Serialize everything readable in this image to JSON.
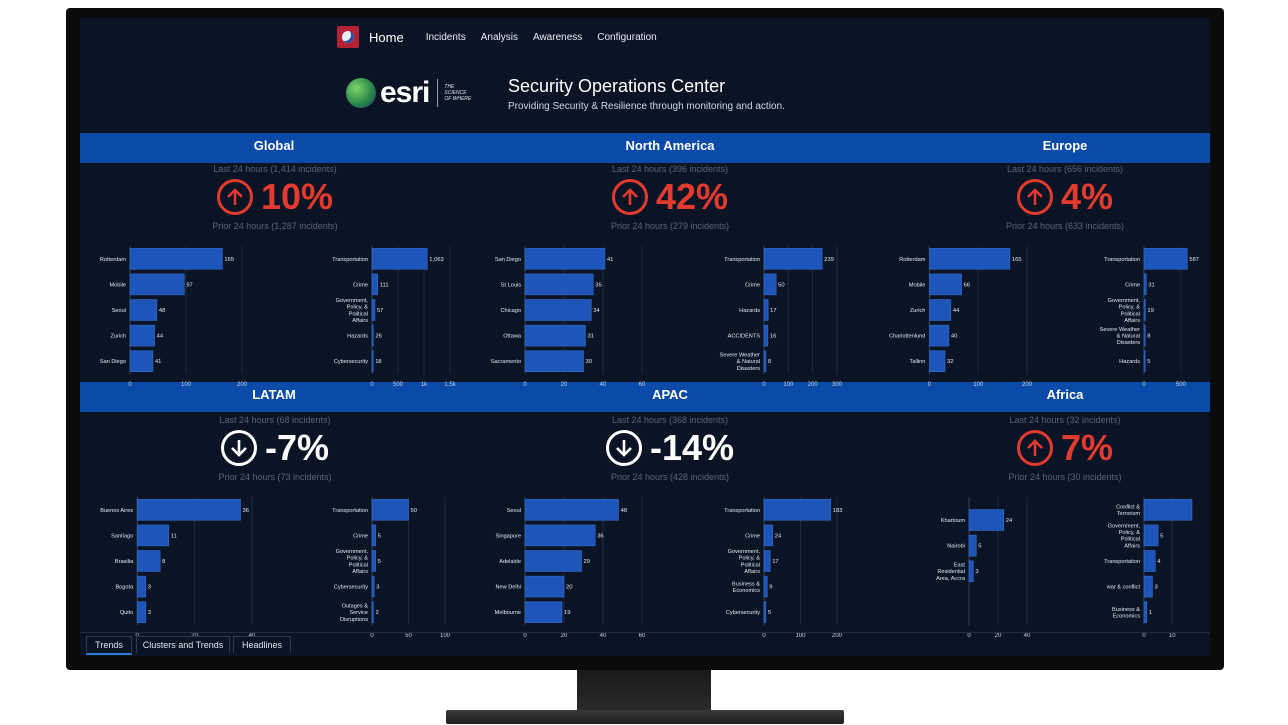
{
  "nav": {
    "home": "Home",
    "links": [
      "Incidents",
      "Analysis",
      "Awareness",
      "Configuration"
    ]
  },
  "brand": {
    "logo_text": "esri",
    "tagline": "THE SCIENCE OF WHERE",
    "title": "Security Operations Center",
    "subtitle": "Providing Security & Resilience through monitoring and action."
  },
  "colors": {
    "band": "#0a4aa8",
    "bar": "#1d55b8",
    "up": "#e23a2e",
    "down": "#ffffff",
    "background": "#0b1424"
  },
  "tabs": [
    "Trends",
    "Clusters and Trends",
    "Headlines"
  ],
  "regions": [
    {
      "title": "Global",
      "last24": "Last 24 hours (1,414 incidents)",
      "change": "10%",
      "direction": "up",
      "prior24": "Prior 24 hours (1,287 incidents)"
    },
    {
      "title": "North America",
      "last24": "Last 24 hours (396 incidents)",
      "change": "42%",
      "direction": "up",
      "prior24": "Prior 24 hours (279 incidents)"
    },
    {
      "title": "Europe",
      "last24": "Last 24 hours (656 incidents)",
      "change": "4%",
      "direction": "up",
      "prior24": "Prior 24 hours (633 incidents)"
    },
    {
      "title": "LATAM",
      "last24": "Last 24 hours (68 incidents)",
      "change": "-7%",
      "direction": "down",
      "prior24": "Prior 24 hours (73 incidents)"
    },
    {
      "title": "APAC",
      "last24": "Last 24 hours (368 incidents)",
      "change": "-14%",
      "direction": "down",
      "prior24": "Prior 24 hours (428 incidents)"
    },
    {
      "title": "Africa",
      "last24": "Last 24 hours (32 incidents)",
      "change": "7%",
      "direction": "up",
      "prior24": "Prior 24 hours (30 incidents)"
    }
  ],
  "chart_data": [
    {
      "type": "bar",
      "title": "Global - cities",
      "categories": [
        "Rotterdam",
        "Mobile",
        "Seoul",
        "Zurich",
        "San Diego"
      ],
      "values": [
        165,
        97,
        48,
        44,
        41
      ],
      "xlim": [
        0,
        200
      ],
      "xticks": [
        "0",
        "100",
        "200"
      ],
      "value_labels": [
        "165",
        "97",
        "48",
        "44",
        "41"
      ]
    },
    {
      "type": "bar",
      "title": "Global - categories",
      "categories": [
        "Transportation",
        "Crime",
        "Government, Policy, & Political Affairs",
        "Hazards",
        "Cybersecurity"
      ],
      "values": [
        1063,
        111,
        57,
        26,
        18
      ],
      "xlim": [
        0,
        1500
      ],
      "xticks": [
        "0",
        "500",
        "1k",
        "1.5k"
      ],
      "value_labels": [
        "1,063",
        "111",
        "57",
        "26",
        "18"
      ]
    },
    {
      "type": "bar",
      "title": "North America - cities",
      "categories": [
        "San Diego",
        "St Louis",
        "Chicago",
        "Ottawa",
        "Sacramento"
      ],
      "values": [
        41,
        35,
        34,
        31,
        30
      ],
      "xlim": [
        0,
        60
      ],
      "xticks": [
        "0",
        "20",
        "40",
        "60"
      ],
      "value_labels": [
        "41",
        "35",
        "34",
        "31",
        "30"
      ]
    },
    {
      "type": "bar",
      "title": "North America - categories",
      "categories": [
        "Transportation",
        "Crime",
        "Hazards",
        "ACCIDENTS",
        "Severe Weather & Natural Disasters"
      ],
      "values": [
        239,
        50,
        17,
        16,
        8
      ],
      "xlim": [
        0,
        300
      ],
      "xticks": [
        "0",
        "100",
        "200",
        "300"
      ],
      "value_labels": [
        "239",
        "50",
        "17",
        "16",
        "8"
      ]
    },
    {
      "type": "bar",
      "title": "Europe - cities",
      "categories": [
        "Rotterdam",
        "Mobile",
        "Zurich",
        "Charlottenlund",
        "Tallinn"
      ],
      "values": [
        165,
        66,
        44,
        40,
        32
      ],
      "xlim": [
        0,
        200
      ],
      "xticks": [
        "0",
        "100",
        "200"
      ],
      "value_labels": [
        "165",
        "66",
        "44",
        "40",
        "32"
      ]
    },
    {
      "type": "bar",
      "title": "Europe - categories",
      "categories": [
        "Transportation",
        "Crime",
        "Government, Policy, & Political Affairs",
        "Severe Weather & Natural Disasters",
        "Hazards"
      ],
      "values": [
        587,
        31,
        19,
        8,
        5
      ],
      "xlim": [
        0,
        650
      ],
      "xticks": [
        "0",
        "500"
      ],
      "value_labels": [
        "587",
        "31",
        "19",
        "8",
        "5"
      ]
    },
    {
      "type": "bar",
      "title": "LATAM - cities",
      "categories": [
        "Buenos Aires",
        "Santiago",
        "Brasilia",
        "Bogota",
        "Quito"
      ],
      "values": [
        36,
        11,
        8,
        3,
        3
      ],
      "xlim": [
        0,
        40
      ],
      "xticks": [
        "0",
        "20",
        "40"
      ],
      "value_labels": [
        "36",
        "11",
        "8",
        "3",
        "3"
      ]
    },
    {
      "type": "bar",
      "title": "LATAM - categories",
      "categories": [
        "Transportation",
        "Crime",
        "Government, Policy, & Political Affairs",
        "Cybersecurity",
        "Outages & Service Disruptions"
      ],
      "values": [
        50,
        5,
        5,
        3,
        2
      ],
      "xlim": [
        0,
        100
      ],
      "xticks": [
        "0",
        "50",
        "100"
      ],
      "value_labels": [
        "50",
        "5",
        "5",
        "3",
        "2"
      ]
    },
    {
      "type": "bar",
      "title": "APAC - cities",
      "categories": [
        "Seoul",
        "Singapore",
        "Adelaide",
        "New Delhi",
        "Melbourne"
      ],
      "values": [
        48,
        36,
        29,
        20,
        19
      ],
      "xlim": [
        0,
        60
      ],
      "xticks": [
        "0",
        "20",
        "40",
        "60"
      ],
      "value_labels": [
        "48",
        "36",
        "29",
        "20",
        "19"
      ]
    },
    {
      "type": "bar",
      "title": "APAC - categories",
      "categories": [
        "Transportation",
        "Crime",
        "Government, Policy, & Political Affairs",
        "Business & Economics",
        "Cybersecurity"
      ],
      "values": [
        183,
        24,
        17,
        9,
        5
      ],
      "xlim": [
        0,
        200
      ],
      "xticks": [
        "0",
        "100",
        "200"
      ],
      "value_labels": [
        "183",
        "24",
        "17",
        "9",
        "5"
      ]
    },
    {
      "type": "bar",
      "title": "Africa - cities",
      "categories": [
        "Khartoum",
        "Nairobi",
        "East Residential Area, Accra"
      ],
      "values": [
        24,
        5,
        3
      ],
      "xlim": [
        0,
        40
      ],
      "xticks": [
        "0",
        "20",
        "40"
      ],
      "value_labels": [
        "24",
        "5",
        "3"
      ]
    },
    {
      "type": "bar",
      "title": "Africa - categories",
      "categories": [
        "Conflict & Terrorism",
        "Government, Policy, & Political Affairs",
        "Transportation",
        "war & conflict",
        "Business & Economics"
      ],
      "values": [
        17,
        5,
        4,
        3,
        1
      ],
      "xlim": [
        0,
        17
      ],
      "xticks": [
        "0",
        "10"
      ],
      "value_labels": [
        "",
        "5",
        "4",
        "3",
        "1"
      ]
    }
  ]
}
